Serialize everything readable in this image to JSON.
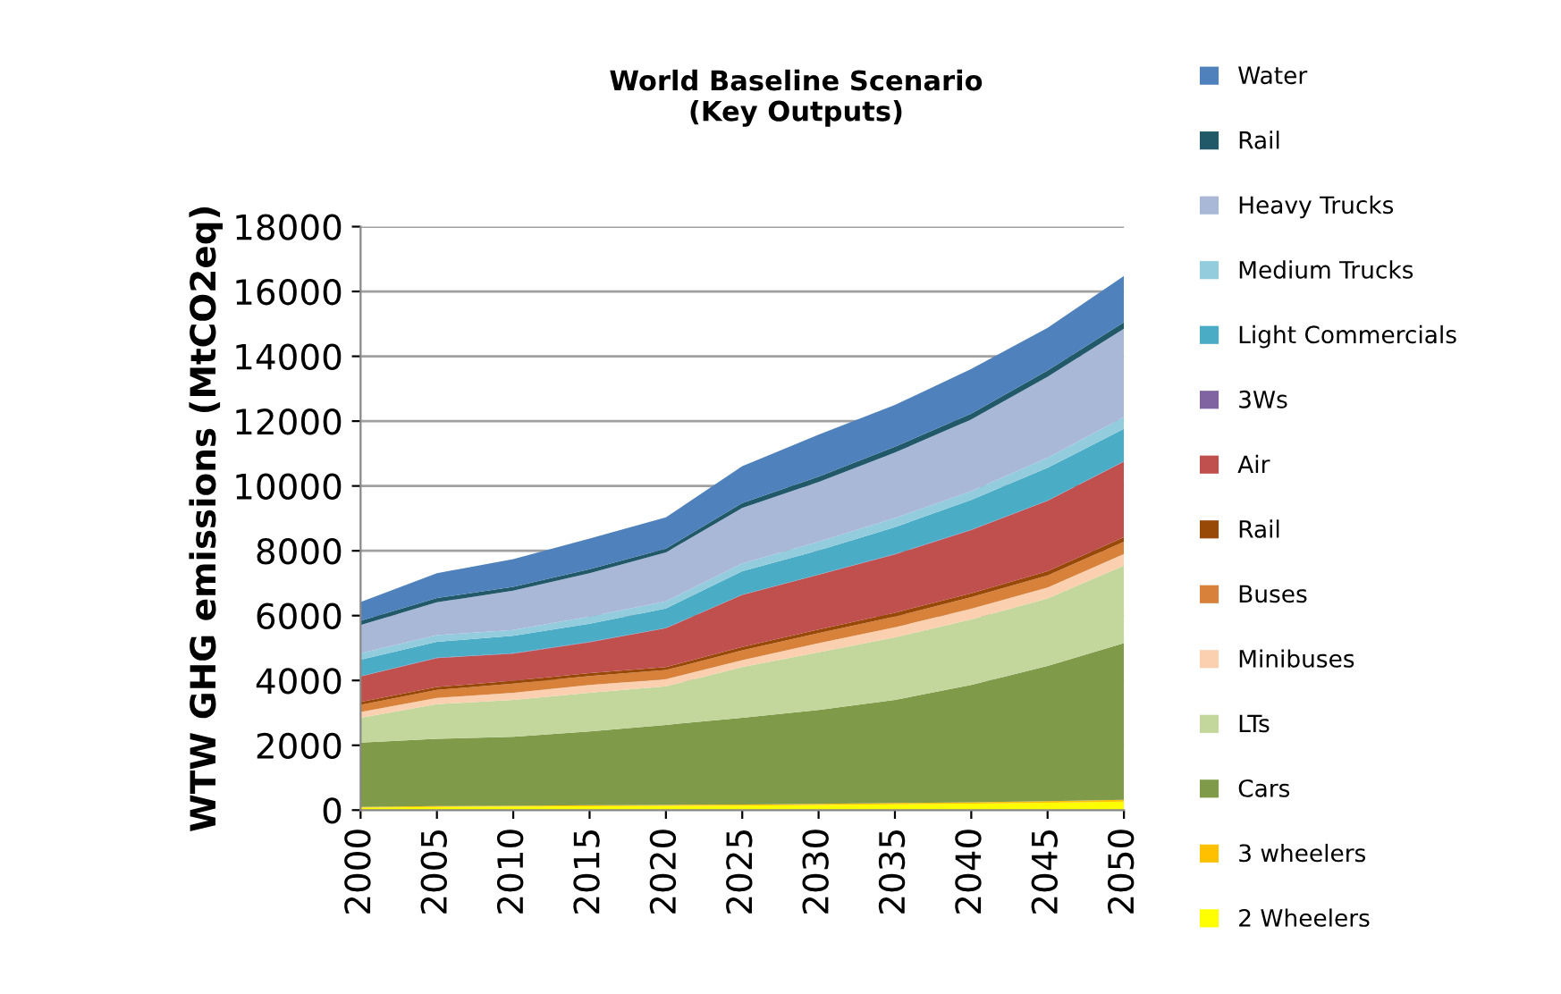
{
  "chart_data": {
    "type": "area",
    "stacked": true,
    "title": "World Baseline Scenario\n(Key Outputs)",
    "ylabel": "WTW GHG emissions (MtCO2eq)",
    "x": [
      2000,
      2005,
      2010,
      2015,
      2020,
      2025,
      2030,
      2035,
      2040,
      2045,
      2050
    ],
    "xlim": [
      2000,
      2050
    ],
    "xticks": [
      2000,
      2005,
      2010,
      2015,
      2020,
      2025,
      2030,
      2035,
      2040,
      2045,
      2050
    ],
    "ylim": [
      0,
      18000
    ],
    "yticks": [
      0,
      2000,
      4000,
      6000,
      8000,
      10000,
      12000,
      14000,
      16000,
      18000
    ],
    "grid": "y",
    "legend": "right",
    "series": [
      {
        "name": "2 Wheelers",
        "color": "#ffff00",
        "values": [
          80,
          100,
          110,
          120,
          130,
          140,
          160,
          180,
          200,
          230,
          260
        ]
      },
      {
        "name": "3 wheelers",
        "color": "#ffc000",
        "values": [
          20,
          25,
          25,
          30,
          30,
          35,
          35,
          40,
          45,
          50,
          55
        ]
      },
      {
        "name": "Cars",
        "color": "#7f9a48",
        "values": [
          1980,
          2075,
          2125,
          2280,
          2470,
          2675,
          2895,
          3180,
          3615,
          4170,
          4835
        ]
      },
      {
        "name": "LTs",
        "color": "#c3d69b",
        "values": [
          770,
          1070,
          1140,
          1190,
          1190,
          1560,
          1780,
          1930,
          2020,
          2080,
          2390
        ]
      },
      {
        "name": "Minibuses",
        "color": "#fbd0b0",
        "values": [
          180,
          190,
          220,
          240,
          220,
          220,
          280,
          310,
          330,
          340,
          360
        ]
      },
      {
        "name": "Buses",
        "color": "#d7813a",
        "values": [
          220,
          250,
          280,
          280,
          280,
          300,
          310,
          330,
          360,
          370,
          380
        ]
      },
      {
        "name": "Rail",
        "color": "#984807",
        "values": [
          90,
          90,
          90,
          90,
          90,
          100,
          110,
          120,
          120,
          130,
          140
        ]
      },
      {
        "name": "Air",
        "color": "#c0504d",
        "values": [
          780,
          890,
          840,
          950,
          1200,
          1610,
          1690,
          1800,
          1950,
          2170,
          2330
        ]
      },
      {
        "name": "3Ws",
        "color": "#8064a2",
        "values": [
          10,
          10,
          10,
          10,
          10,
          10,
          10,
          10,
          10,
          10,
          10
        ]
      },
      {
        "name": "Light Commercials",
        "color": "#4bacc6",
        "values": [
          510,
          490,
          540,
          560,
          600,
          720,
          740,
          830,
          920,
          1010,
          1000
        ]
      },
      {
        "name": "Medium Trucks",
        "color": "#93cddd",
        "values": [
          200,
          210,
          180,
          220,
          220,
          240,
          270,
          280,
          270,
          310,
          370
        ]
      },
      {
        "name": "Heavy Trucks",
        "color": "#aab8d8",
        "values": [
          870,
          1010,
          1210,
          1340,
          1510,
          1710,
          1840,
          2020,
          2210,
          2500,
          2720
        ]
      },
      {
        "name": "Rail",
        "color": "#215968",
        "values": [
          130,
          130,
          120,
          120,
          120,
          150,
          170,
          180,
          180,
          190,
          200
        ]
      },
      {
        "name": "Water",
        "color": "#4f81bd",
        "values": [
          580,
          770,
          850,
          950,
          960,
          1140,
          1290,
          1290,
          1380,
          1320,
          1430
        ]
      }
    ]
  }
}
